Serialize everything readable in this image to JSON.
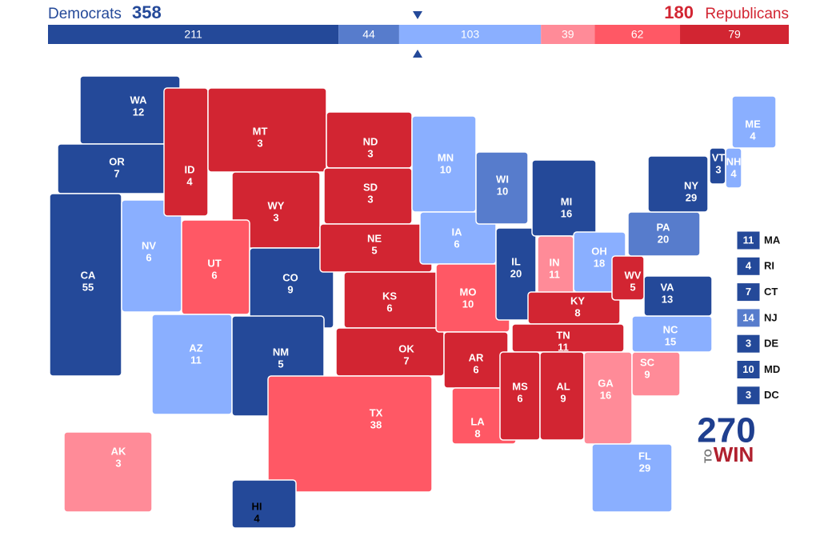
{
  "header": {
    "dem_label": "Democrats",
    "dem_total": 358,
    "rep_total": 180,
    "rep_label": "Republicans"
  },
  "bar": [
    {
      "value": 211,
      "color": "#244999"
    },
    {
      "value": 44,
      "color": "#577ccc"
    },
    {
      "value": 103,
      "color": "#8aafff"
    },
    {
      "value": 39,
      "color": "#ff8b98"
    },
    {
      "value": 62,
      "color": "#ff5865"
    },
    {
      "value": 79,
      "color": "#d22532"
    }
  ],
  "states": [
    {
      "abbr": "WA",
      "ev": 12,
      "color": "#244999"
    },
    {
      "abbr": "OR",
      "ev": 7,
      "color": "#244999"
    },
    {
      "abbr": "CA",
      "ev": 55,
      "color": "#244999"
    },
    {
      "abbr": "NV",
      "ev": 6,
      "color": "#8aafff"
    },
    {
      "abbr": "ID",
      "ev": 4,
      "color": "#d22532"
    },
    {
      "abbr": "MT",
      "ev": 3,
      "color": "#d22532"
    },
    {
      "abbr": "WY",
      "ev": 3,
      "color": "#d22532"
    },
    {
      "abbr": "UT",
      "ev": 6,
      "color": "#ff5865"
    },
    {
      "abbr": "CO",
      "ev": 9,
      "color": "#244999"
    },
    {
      "abbr": "AZ",
      "ev": 11,
      "color": "#8aafff"
    },
    {
      "abbr": "NM",
      "ev": 5,
      "color": "#244999"
    },
    {
      "abbr": "ND",
      "ev": 3,
      "color": "#d22532"
    },
    {
      "abbr": "SD",
      "ev": 3,
      "color": "#d22532"
    },
    {
      "abbr": "NE",
      "ev": 5,
      "color": "#d22532"
    },
    {
      "abbr": "KS",
      "ev": 6,
      "color": "#d22532"
    },
    {
      "abbr": "OK",
      "ev": 7,
      "color": "#d22532"
    },
    {
      "abbr": "TX",
      "ev": 38,
      "color": "#ff5865"
    },
    {
      "abbr": "MN",
      "ev": 10,
      "color": "#8aafff"
    },
    {
      "abbr": "IA",
      "ev": 6,
      "color": "#8aafff"
    },
    {
      "abbr": "MO",
      "ev": 10,
      "color": "#ff5865"
    },
    {
      "abbr": "AR",
      "ev": 6,
      "color": "#d22532"
    },
    {
      "abbr": "LA",
      "ev": 8,
      "color": "#ff5865"
    },
    {
      "abbr": "WI",
      "ev": 10,
      "color": "#577ccc"
    },
    {
      "abbr": "IL",
      "ev": 20,
      "color": "#244999"
    },
    {
      "abbr": "MI",
      "ev": 16,
      "color": "#244999"
    },
    {
      "abbr": "IN",
      "ev": 11,
      "color": "#ff8b98"
    },
    {
      "abbr": "OH",
      "ev": 18,
      "color": "#8aafff"
    },
    {
      "abbr": "KY",
      "ev": 8,
      "color": "#d22532"
    },
    {
      "abbr": "TN",
      "ev": 11,
      "color": "#d22532"
    },
    {
      "abbr": "MS",
      "ev": 6,
      "color": "#d22532"
    },
    {
      "abbr": "AL",
      "ev": 9,
      "color": "#d22532"
    },
    {
      "abbr": "GA",
      "ev": 16,
      "color": "#ff8b98"
    },
    {
      "abbr": "FL",
      "ev": 29,
      "color": "#8aafff"
    },
    {
      "abbr": "SC",
      "ev": 9,
      "color": "#ff8b98"
    },
    {
      "abbr": "NC",
      "ev": 15,
      "color": "#8aafff"
    },
    {
      "abbr": "VA",
      "ev": 13,
      "color": "#244999"
    },
    {
      "abbr": "WV",
      "ev": 5,
      "color": "#d22532"
    },
    {
      "abbr": "PA",
      "ev": 20,
      "color": "#577ccc"
    },
    {
      "abbr": "NY",
      "ev": 29,
      "color": "#244999"
    },
    {
      "abbr": "VT",
      "ev": 3,
      "color": "#244999"
    },
    {
      "abbr": "NH",
      "ev": 4,
      "color": "#8aafff"
    },
    {
      "abbr": "ME",
      "ev": 4,
      "color": "#8aafff"
    },
    {
      "abbr": "AK",
      "ev": 3,
      "color": "#ff8b98"
    },
    {
      "abbr": "HI",
      "ev": 4,
      "color": "#244999"
    }
  ],
  "side_boxes": [
    {
      "abbr": "MA",
      "ev": 11,
      "color": "#244999"
    },
    {
      "abbr": "RI",
      "ev": 4,
      "color": "#244999"
    },
    {
      "abbr": "CT",
      "ev": 7,
      "color": "#244999"
    },
    {
      "abbr": "NJ",
      "ev": 14,
      "color": "#577ccc"
    },
    {
      "abbr": "DE",
      "ev": 3,
      "color": "#244999"
    },
    {
      "abbr": "MD",
      "ev": 10,
      "color": "#244999"
    },
    {
      "abbr": "DC",
      "ev": 3,
      "color": "#244999"
    }
  ],
  "logo": {
    "number": "270",
    "to": "TO",
    "win": "WIN"
  }
}
